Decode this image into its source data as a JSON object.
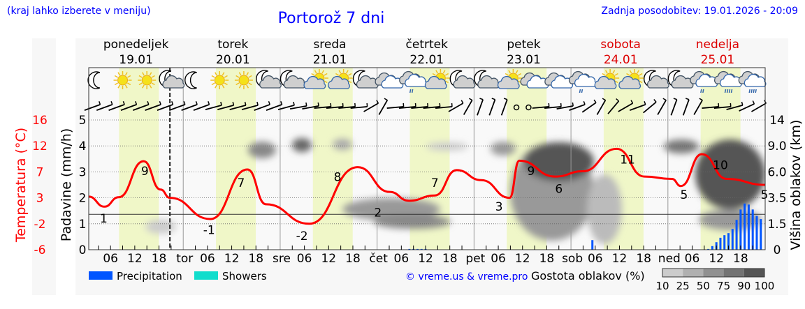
{
  "header": {
    "hint": "(kraj lahko izberete v meniju)",
    "title": "Portorož 7 dni",
    "updated": "Zadnja posodobitev: 19.01.2026 - 20:09"
  },
  "days": [
    {
      "name": "ponedeljek",
      "date": "19.01",
      "abbr": "",
      "weekend": false
    },
    {
      "name": "torek",
      "date": "20.01",
      "abbr": "tor",
      "weekend": false
    },
    {
      "name": "sreda",
      "date": "21.01",
      "abbr": "sre",
      "weekend": false
    },
    {
      "name": "četrtek",
      "date": "22.01",
      "abbr": "čet",
      "weekend": false
    },
    {
      "name": "petek",
      "date": "23.01",
      "abbr": "pet",
      "weekend": false
    },
    {
      "name": "sobota",
      "date": "24.01",
      "abbr": "sob",
      "weekend": true
    },
    {
      "name": "nedelja",
      "date": "25.01",
      "abbr": "ned",
      "weekend": true
    }
  ],
  "colors": {
    "accent": "#0000ff",
    "weekend": "#dd0000",
    "temperature": "#ff0000",
    "precipitation": "#0055ff",
    "showers": "#11ddcc",
    "daylight": "#f0f7c8"
  },
  "chart_data": {
    "type": "line",
    "title": "Portorož 7 dni",
    "xlabel": "",
    "ylabel_left_precip": "Padavine (mm/h)",
    "ylabel_left_temp": "Temperatura (°C)",
    "ylabel_right": "Višina oblakov (km)",
    "hour_ticks": [
      "06",
      "12",
      "18"
    ],
    "precip_ticks": [
      "0",
      "1",
      "2",
      "3",
      "4",
      "5"
    ],
    "temp_ticks": [
      "-6",
      "-2",
      "3",
      "7",
      "12",
      "16"
    ],
    "cloud_height_ticks": [
      "0",
      "1.5",
      "3.5",
      "6.0",
      "9.0",
      "14"
    ],
    "ylim_precip": [
      0,
      5
    ],
    "ylim_temp": [
      -6,
      16
    ],
    "now_hour": 20.7,
    "temperature": {
      "hours": [
        0.6,
        4.5,
        8,
        14.2,
        18.4,
        20.7,
        30.7,
        39.9,
        44.5,
        55.2,
        67.2,
        75.1,
        79.9,
        86.3,
        91.7,
        97.8,
        104.8,
        107.2,
        116.1,
        122.9,
        131.3,
        138.2,
        145,
        147.2,
        152.4,
        158.6,
        168.6
      ],
      "values": [
        3.0,
        1.3,
        2.9,
        9.0,
        4.2,
        2.8,
        -0.8,
        7.6,
        1.7,
        -1.6,
        8.0,
        3.8,
        2.3,
        3.2,
        7.5,
        5.8,
        2.8,
        9.1,
        6.4,
        7.3,
        11.1,
        6.4,
        6.0,
        4.8,
        10.2,
        6.0,
        5.0
      ]
    },
    "temperature_labels": [
      {
        "hour": 4.3,
        "value": "1"
      },
      {
        "hour": 14.5,
        "value": "9"
      },
      {
        "hour": 30.4,
        "value": "-1"
      },
      {
        "hour": 38.3,
        "value": "7"
      },
      {
        "hour": 53.4,
        "value": "-2"
      },
      {
        "hour": 62.2,
        "value": "8"
      },
      {
        "hour": 72.2,
        "value": "2"
      },
      {
        "hour": 86.3,
        "value": "7"
      },
      {
        "hour": 102.2,
        "value": "3"
      },
      {
        "hour": 110.1,
        "value": "9"
      },
      {
        "hour": 117,
        "value": "6"
      },
      {
        "hour": 134,
        "value": "11"
      },
      {
        "hour": 148,
        "value": "5"
      },
      {
        "hour": 157,
        "value": "10"
      },
      {
        "hour": 168,
        "value": "5"
      }
    ],
    "precipitation": {
      "hours": [
        80,
        81,
        82,
        83,
        84,
        125.3,
        154,
        155,
        156,
        157,
        158,
        159,
        160,
        161,
        162,
        163,
        164,
        165,
        166,
        167
      ],
      "values": [
        0.03,
        0.03,
        0.03,
        0.03,
        0.03,
        0.37,
        0.03,
        0.14,
        0.29,
        0.46,
        0.56,
        0.64,
        0.8,
        1.15,
        1.55,
        1.78,
        1.74,
        1.55,
        1.3,
        1.18
      ]
    },
    "icons": [
      "moon",
      "sun",
      "sun",
      "moon-cloud",
      "moon",
      "sun",
      "sun",
      "moon-cloud",
      "moon-cloud",
      "sun-cloud",
      "sun-cloud",
      "moon-cloud",
      "clouds",
      "cloud-drizzle",
      "sun-cloud",
      "moon-cloud",
      "moon-cloud",
      "sun-cloud",
      "clouds",
      "clouds",
      "cloud-drizzle",
      "sun-cloud",
      "sun-cloud",
      "moon-cloud",
      "moon-cloud",
      "cloud-drizzle",
      "cloud-rain",
      "cloud-rain"
    ],
    "wind_directions_deg": [
      250,
      250,
      250,
      250,
      250,
      250,
      250,
      250,
      250,
      250,
      255,
      255,
      255,
      255,
      250,
      250,
      255,
      260,
      260,
      265,
      265,
      265,
      265,
      240,
      210,
      265,
      265,
      265,
      265,
      265,
      240,
      210,
      200,
      200,
      200,
      0,
      0,
      265,
      265,
      260,
      250,
      235,
      210,
      220,
      240,
      250,
      230,
      210,
      200,
      200,
      210,
      265,
      265,
      255,
      245,
      240
    ],
    "legend": {
      "precipitation": "Precipitation",
      "showers": "Showers"
    },
    "cloud_density": {
      "title": "Gostota oblakov (%)",
      "levels": [
        "10",
        "25",
        "50",
        "75",
        "90",
        "100"
      ],
      "shades": [
        "#cccccc",
        "#b0b0b0",
        "#909090",
        "#737373",
        "#555555"
      ]
    }
  },
  "footer": {
    "copyright": "© vreme.us & vreme.pro"
  }
}
